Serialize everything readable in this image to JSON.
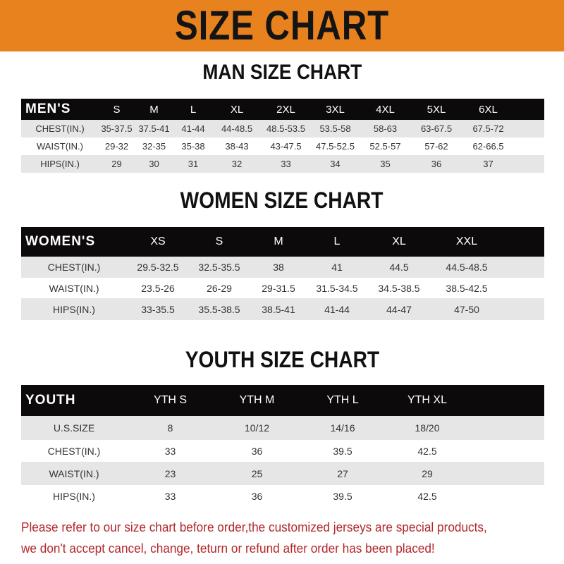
{
  "title": "SIZE CHART",
  "men": {
    "title": "MAN SIZE CHART",
    "header": [
      "MEN'S",
      "S",
      "M",
      "L",
      "XL",
      "2XL",
      "3XL",
      "4XL",
      "5XL",
      "6XL"
    ],
    "rows": [
      [
        "CHEST(IN.)",
        "35-37.5",
        "37.5-41",
        "41-44",
        "44-48.5",
        "48.5-53.5",
        "53.5-58",
        "58-63",
        "63-67.5",
        "67.5-72"
      ],
      [
        "WAIST(IN.)",
        "29-32",
        "32-35",
        "35-38",
        "38-43",
        "43-47.5",
        "47.5-52.5",
        "52.5-57",
        "57-62",
        "62-66.5"
      ],
      [
        "HIPS(IN.)",
        "29",
        "30",
        "31",
        "32",
        "33",
        "34",
        "35",
        "36",
        "37"
      ]
    ]
  },
  "women": {
    "title": "WOMEN SIZE CHART",
    "header": [
      "WOMEN'S",
      "XS",
      "S",
      "M",
      "L",
      "XL",
      "XXL"
    ],
    "rows": [
      [
        "CHEST(IN.)",
        "29.5-32.5",
        "32.5-35.5",
        "38",
        "41",
        "44.5",
        "44.5-48.5"
      ],
      [
        "WAIST(IN.)",
        "23.5-26",
        "26-29",
        "29-31.5",
        "31.5-34.5",
        "34.5-38.5",
        "38.5-42.5"
      ],
      [
        "HIPS(IN.)",
        "33-35.5",
        "35.5-38.5",
        "38.5-41",
        "41-44",
        "44-47",
        "47-50"
      ]
    ]
  },
  "youth": {
    "title": "YOUTH SIZE CHART",
    "header": [
      "YOUTH",
      "YTH S",
      "YTH M",
      "YTH L",
      "YTH XL"
    ],
    "rows": [
      [
        "U.S.SIZE",
        "8",
        "10/12",
        "14/16",
        "18/20"
      ],
      [
        "CHEST(IN.)",
        "33",
        "36",
        "39.5",
        "42.5"
      ],
      [
        "WAIST(IN.)",
        "23",
        "25",
        "27",
        "29"
      ],
      [
        "HIPS(IN.)",
        "33",
        "36",
        "39.5",
        "42.5"
      ]
    ]
  },
  "note": [
    "Please refer to our size chart before order,the customized jerseys are special products,",
    "we don't accept cancel, change, teturn or refund after order has been placed!"
  ],
  "colors": {
    "banner": "#e8821f",
    "header_row": "#0c0a0a",
    "stripe": "#e6e6e6",
    "note": "#b3262a"
  }
}
